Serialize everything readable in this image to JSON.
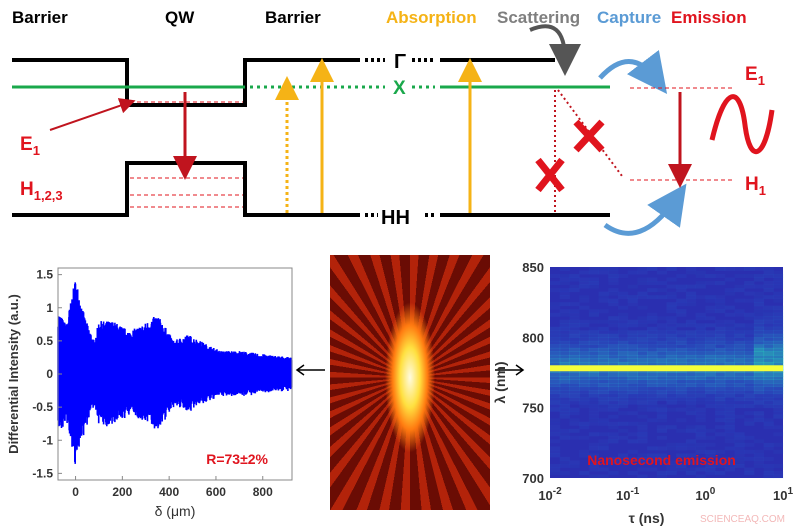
{
  "headers": [
    {
      "label": "Barrier",
      "color": "#000000"
    },
    {
      "label": "QW",
      "color": "#000000"
    },
    {
      "label": "Barrier",
      "color": "#000000"
    },
    {
      "label": "Absorption",
      "color": "#f5b316"
    },
    {
      "label": "Scattering",
      "color": "#7f7f7f"
    },
    {
      "label": "Capture",
      "color": "#5b9bd5"
    },
    {
      "label": "Emission",
      "color": "#e0141e"
    }
  ],
  "diagram": {
    "gamma": "Γ",
    "x_valley": "X",
    "hh": "HH",
    "e1_left": "E",
    "e1_left_sub": "1",
    "h123": "H",
    "h123_sub": "1,2,3",
    "e1_right": "E",
    "e1_right_sub": "1",
    "h1_right": "H",
    "h1_right_sub": "1",
    "colors": {
      "band": "#000000",
      "x_band": "#1aa84b",
      "absorption": "#f5b316",
      "emission": "#c0141e",
      "capture": "#5b9bd5",
      "scattering": "#7f7f7f"
    }
  },
  "chart_data": [
    {
      "type": "line",
      "xlabel": "δ (μm)",
      "ylabel": "Differential Intensity (a.u.)",
      "xlim": [
        -75,
        925
      ],
      "ylim": [
        -1.6,
        1.6
      ],
      "xticks": [
        "0",
        "200",
        "400",
        "600",
        "800"
      ],
      "yticks": [
        "-1.5",
        "-1",
        "-0.5",
        "0",
        "0.5",
        "1",
        "1.5"
      ],
      "annotation": "R=73±2%",
      "annotation_color": "#e0141e",
      "series_color": "#0000ff",
      "envelope": {
        "x": [
          -75,
          -40,
          0,
          40,
          80,
          100,
          160,
          230,
          290,
          350,
          420,
          480,
          560,
          620,
          700,
          800,
          925
        ],
        "amplitude": [
          0.95,
          0.75,
          1.45,
          0.85,
          0.5,
          0.8,
          0.8,
          0.65,
          0.75,
          0.9,
          0.5,
          0.6,
          0.45,
          0.35,
          0.35,
          0.3,
          0.25
        ]
      }
    },
    {
      "type": "heatmap",
      "xlabel": "τ (ns)",
      "ylabel": "λ (nm)",
      "xscale": "log",
      "xlim": [
        0.01,
        10
      ],
      "ylim": [
        700,
        850
      ],
      "xticks": [
        {
          "base": "10",
          "exp": "-2"
        },
        {
          "base": "10",
          "exp": "-1"
        },
        {
          "base": "10",
          "exp": "0"
        },
        {
          "base": "10",
          "exp": "1"
        }
      ],
      "yticks": [
        "700",
        "750",
        "800",
        "850"
      ],
      "peak_wavelength_nm": 778,
      "annotation": "Nanosecond emission",
      "annotation_color": "#e0141e"
    }
  ],
  "watermark": "SCIENCEAQ.COM"
}
